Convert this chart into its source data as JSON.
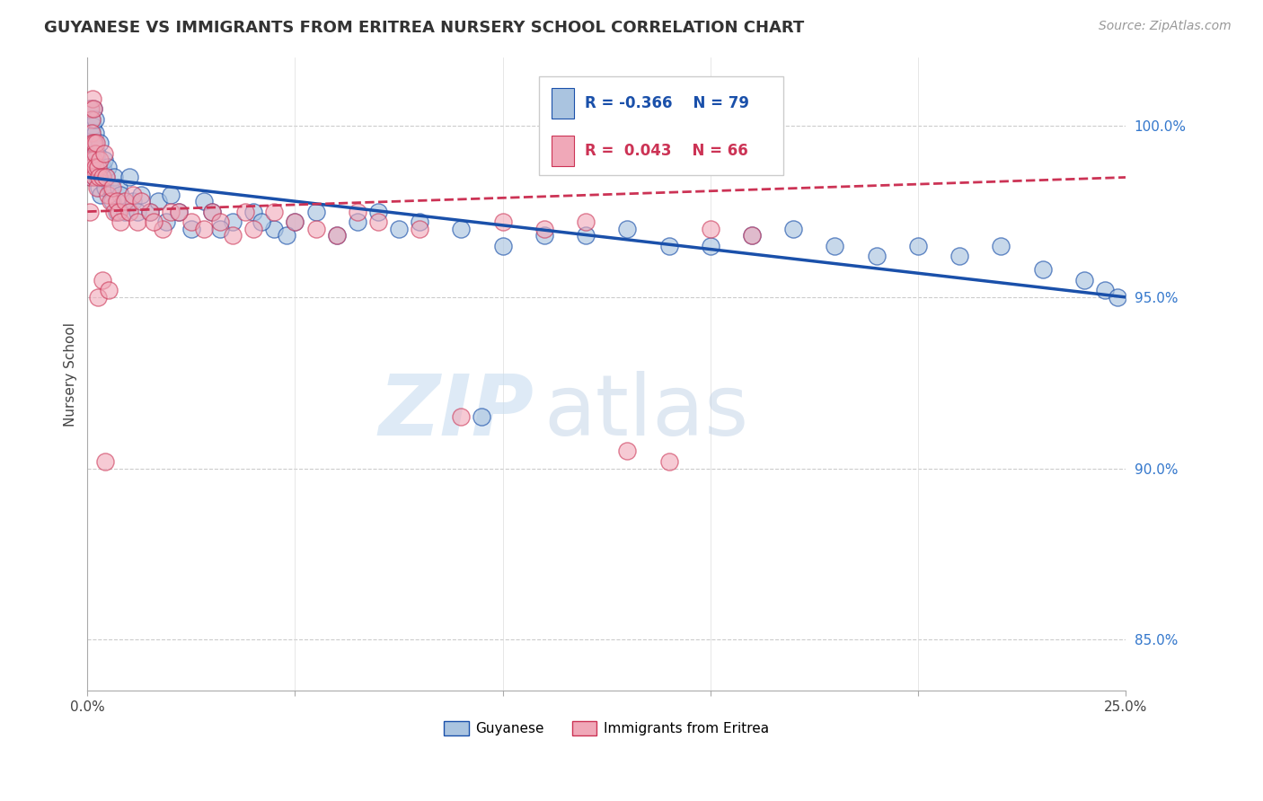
{
  "title": "GUYANESE VS IMMIGRANTS FROM ERITREA NURSERY SCHOOL CORRELATION CHART",
  "source": "Source: ZipAtlas.com",
  "ylabel": "Nursery School",
  "right_yticks": [
    85.0,
    90.0,
    95.0,
    100.0
  ],
  "right_ytick_labels": [
    "85.0%",
    "90.0%",
    "95.0%",
    "100.0%"
  ],
  "legend_blue_label": "Guyanese",
  "legend_pink_label": "Immigrants from Eritrea",
  "blue_color": "#aac4e0",
  "pink_color": "#f0a8b8",
  "trend_blue_color": "#1a50aa",
  "trend_pink_color": "#cc3355",
  "watermark_zip": "ZIP",
  "watermark_atlas": "atlas",
  "xlim": [
    0.0,
    25.0
  ],
  "ylim": [
    83.5,
    102.0
  ],
  "legend_blue_r": "R = -0.366",
  "legend_blue_n": "N = 79",
  "legend_pink_r": "R =  0.043",
  "legend_pink_n": "N = 66",
  "blue_x": [
    0.05,
    0.06,
    0.07,
    0.08,
    0.09,
    0.1,
    0.11,
    0.12,
    0.13,
    0.14,
    0.15,
    0.16,
    0.17,
    0.18,
    0.19,
    0.2,
    0.22,
    0.24,
    0.26,
    0.28,
    0.3,
    0.32,
    0.35,
    0.38,
    0.4,
    0.42,
    0.45,
    0.5,
    0.55,
    0.6,
    0.65,
    0.7,
    0.75,
    0.8,
    0.9,
    1.0,
    1.1,
    1.2,
    1.3,
    1.5,
    1.7,
    1.9,
    2.0,
    2.2,
    2.5,
    2.8,
    3.0,
    3.5,
    4.0,
    4.5,
    5.0,
    5.5,
    6.0,
    6.5,
    7.0,
    7.5,
    8.0,
    9.0,
    10.0,
    11.0,
    12.0,
    13.0,
    14.0,
    15.0,
    16.0,
    17.0,
    18.0,
    19.0,
    20.0,
    21.0,
    22.0,
    23.0,
    24.0,
    24.5,
    24.8,
    3.2,
    4.2,
    4.8,
    9.5
  ],
  "blue_y": [
    99.0,
    100.5,
    98.5,
    99.5,
    100.2,
    99.8,
    98.8,
    99.2,
    100.0,
    99.5,
    100.5,
    99.0,
    98.5,
    99.8,
    100.2,
    99.0,
    98.5,
    99.2,
    98.8,
    98.2,
    99.5,
    98.0,
    98.8,
    98.5,
    99.0,
    98.2,
    98.5,
    98.8,
    98.2,
    97.8,
    98.5,
    97.5,
    98.2,
    98.0,
    97.5,
    98.5,
    97.8,
    97.5,
    98.0,
    97.5,
    97.8,
    97.2,
    98.0,
    97.5,
    97.0,
    97.8,
    97.5,
    97.2,
    97.5,
    97.0,
    97.2,
    97.5,
    96.8,
    97.2,
    97.5,
    97.0,
    97.2,
    97.0,
    96.5,
    96.8,
    96.8,
    97.0,
    96.5,
    96.5,
    96.8,
    97.0,
    96.5,
    96.2,
    96.5,
    96.2,
    96.5,
    95.8,
    95.5,
    95.2,
    95.0,
    97.0,
    97.2,
    96.8,
    91.5
  ],
  "pink_x": [
    0.05,
    0.06,
    0.07,
    0.08,
    0.09,
    0.1,
    0.11,
    0.12,
    0.13,
    0.14,
    0.15,
    0.16,
    0.17,
    0.18,
    0.19,
    0.2,
    0.22,
    0.25,
    0.28,
    0.3,
    0.35,
    0.4,
    0.45,
    0.5,
    0.55,
    0.6,
    0.65,
    0.7,
    0.75,
    0.8,
    0.9,
    1.0,
    1.1,
    1.2,
    1.5,
    1.8,
    2.0,
    2.5,
    3.0,
    3.5,
    4.0,
    4.5,
    5.0,
    1.3,
    1.6,
    2.2,
    2.8,
    3.2,
    3.8,
    5.5,
    6.0,
    6.5,
    7.0,
    8.0,
    9.0,
    10.0,
    11.0,
    12.0,
    13.0,
    14.0,
    15.0,
    16.0,
    0.25,
    0.35,
    0.42,
    0.52
  ],
  "pink_y": [
    98.5,
    97.5,
    99.0,
    100.5,
    100.2,
    99.8,
    98.8,
    99.5,
    100.8,
    99.0,
    100.5,
    99.5,
    98.5,
    99.2,
    98.8,
    99.5,
    98.2,
    98.8,
    98.5,
    99.0,
    98.5,
    99.2,
    98.5,
    98.0,
    97.8,
    98.2,
    97.5,
    97.8,
    97.5,
    97.2,
    97.8,
    97.5,
    98.0,
    97.2,
    97.5,
    97.0,
    97.5,
    97.2,
    97.5,
    96.8,
    97.0,
    97.5,
    97.2,
    97.8,
    97.2,
    97.5,
    97.0,
    97.2,
    97.5,
    97.0,
    96.8,
    97.5,
    97.2,
    97.0,
    91.5,
    97.2,
    97.0,
    97.2,
    90.5,
    90.2,
    97.0,
    96.8,
    95.0,
    95.5,
    90.2,
    95.2
  ]
}
